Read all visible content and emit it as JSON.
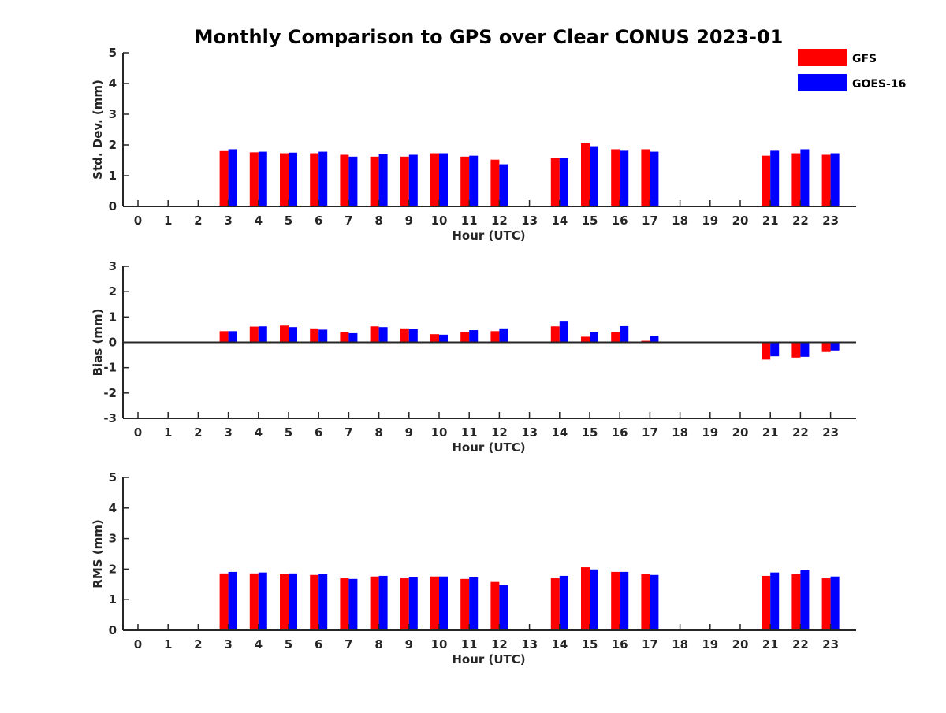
{
  "title": "Monthly Comparison to GPS over Clear CONUS 2023-01",
  "colors": {
    "GFS": "#ff0000",
    "GOES-16": "#0000ff",
    "axis": "#262626"
  },
  "legend": {
    "placement": "top-right",
    "entries": [
      "GFS",
      "GOES-16"
    ]
  },
  "chart_data": [
    {
      "type": "bar",
      "ylabel": "Std. Dev. (mm)",
      "xlabel": "Hour (UTC)",
      "ylim": [
        0,
        5
      ],
      "yticks": [
        "0",
        "1",
        "2",
        "3",
        "4",
        "5"
      ],
      "categories": [
        "0",
        "1",
        "2",
        "3",
        "4",
        "5",
        "6",
        "7",
        "8",
        "9",
        "10",
        "11",
        "12",
        "13",
        "14",
        "15",
        "16",
        "17",
        "18",
        "19",
        "20",
        "21",
        "22",
        "23"
      ],
      "series": [
        {
          "name": "GFS",
          "values": [
            null,
            null,
            null,
            1.8,
            1.76,
            1.73,
            1.73,
            1.68,
            1.62,
            1.62,
            1.73,
            1.62,
            1.52,
            null,
            1.57,
            2.06,
            1.86,
            1.86,
            null,
            null,
            null,
            1.65,
            1.73,
            1.68
          ]
        },
        {
          "name": "GOES-16",
          "values": [
            null,
            null,
            null,
            1.86,
            1.78,
            1.75,
            1.78,
            1.62,
            1.7,
            1.68,
            1.73,
            1.65,
            1.37,
            null,
            1.57,
            1.96,
            1.81,
            1.78,
            null,
            null,
            null,
            1.81,
            1.86,
            1.73
          ]
        }
      ],
      "grid": false
    },
    {
      "type": "bar",
      "ylabel": "Bias (mm)",
      "xlabel": "Hour (UTC)",
      "ylim": [
        -3,
        3
      ],
      "yticks": [
        "-3",
        "-2",
        "-1",
        "0",
        "1",
        "2",
        "3"
      ],
      "categories": [
        "0",
        "1",
        "2",
        "3",
        "4",
        "5",
        "6",
        "7",
        "8",
        "9",
        "10",
        "11",
        "12",
        "13",
        "14",
        "15",
        "16",
        "17",
        "18",
        "19",
        "20",
        "21",
        "22",
        "23"
      ],
      "series": [
        {
          "name": "GFS",
          "values": [
            null,
            null,
            null,
            0.44,
            0.62,
            0.66,
            0.55,
            0.4,
            0.63,
            0.55,
            0.32,
            0.42,
            0.44,
            null,
            0.63,
            0.22,
            0.4,
            0.06,
            null,
            null,
            null,
            -0.68,
            -0.6,
            -0.38
          ]
        },
        {
          "name": "GOES-16",
          "values": [
            null,
            null,
            null,
            0.44,
            0.63,
            0.6,
            0.5,
            0.36,
            0.6,
            0.52,
            0.3,
            0.48,
            0.55,
            null,
            0.82,
            0.4,
            0.64,
            0.26,
            null,
            null,
            null,
            -0.55,
            -0.57,
            -0.32
          ]
        }
      ],
      "zero_line": true,
      "grid": false
    },
    {
      "type": "bar",
      "ylabel": "RMS (mm)",
      "xlabel": "Hour (UTC)",
      "ylim": [
        0,
        5
      ],
      "yticks": [
        "0",
        "1",
        "2",
        "3",
        "4",
        "5"
      ],
      "categories": [
        "0",
        "1",
        "2",
        "3",
        "4",
        "5",
        "6",
        "7",
        "8",
        "9",
        "10",
        "11",
        "12",
        "13",
        "14",
        "15",
        "16",
        "17",
        "18",
        "19",
        "20",
        "21",
        "22",
        "23"
      ],
      "series": [
        {
          "name": "GFS",
          "values": [
            null,
            null,
            null,
            1.86,
            1.86,
            1.83,
            1.81,
            1.7,
            1.76,
            1.7,
            1.76,
            1.68,
            1.58,
            null,
            1.7,
            2.06,
            1.91,
            1.84,
            null,
            null,
            null,
            1.78,
            1.84,
            1.7
          ]
        },
        {
          "name": "GOES-16",
          "values": [
            null,
            null,
            null,
            1.91,
            1.89,
            1.86,
            1.84,
            1.68,
            1.78,
            1.73,
            1.76,
            1.73,
            1.47,
            null,
            1.78,
            1.99,
            1.91,
            1.81,
            null,
            null,
            null,
            1.89,
            1.96,
            1.76
          ]
        }
      ],
      "grid": false
    }
  ]
}
